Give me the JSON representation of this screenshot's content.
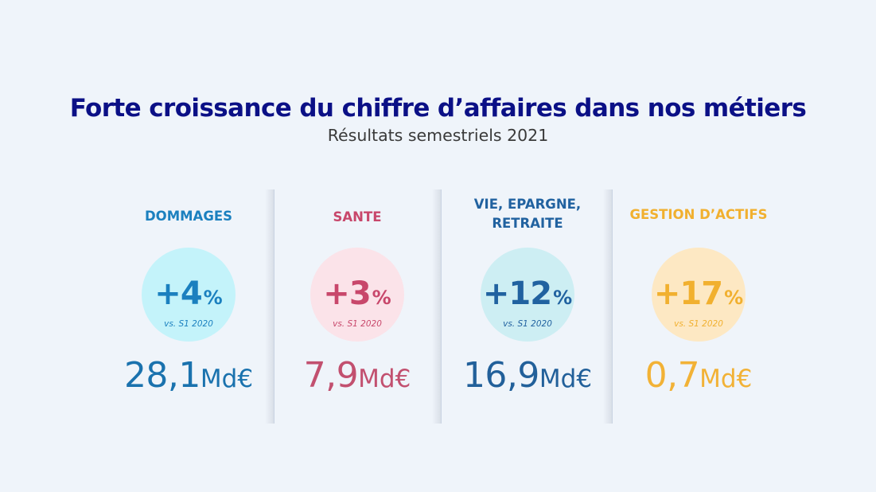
{
  "header": {
    "title": "Forte croissance du chiffre d’affaires dans nos métiers",
    "subtitle": "Résultats semestriels 2021"
  },
  "segments": [
    {
      "label": "DOMMAGES",
      "growth": "+4",
      "growth_unit": "%",
      "comparison": "vs. S1 2020",
      "amount": "28,1",
      "amount_unit": "Md€",
      "color": "#1b80bf",
      "amount_color": "#1a72ae",
      "circle_color": "#c4f3fa"
    },
    {
      "label": "SANTE",
      "growth": "+3",
      "growth_unit": "%",
      "comparison": "vs. S1 2020",
      "amount": "7,9",
      "amount_unit": "Md€",
      "color": "#c8476b",
      "amount_color": "#c2506f",
      "circle_color": "#fbe3e9"
    },
    {
      "label": "VIE, EPARGNE,\nRETRAITE",
      "growth": "+12",
      "growth_unit": "%",
      "comparison": "vs. S1 2020",
      "amount": "16,9",
      "amount_unit": "Md€",
      "color": "#2162a0",
      "amount_color": "#22609a",
      "circle_color": "#cdeef3"
    },
    {
      "label": "GESTION D’ACTIFS",
      "growth": "+17",
      "growth_unit": "%",
      "comparison": "vs. S1 2020",
      "amount": "0,7",
      "amount_unit": "Md€",
      "color": "#f1b02f",
      "amount_color": "#f2b236",
      "circle_color": "#fde8c3"
    }
  ]
}
